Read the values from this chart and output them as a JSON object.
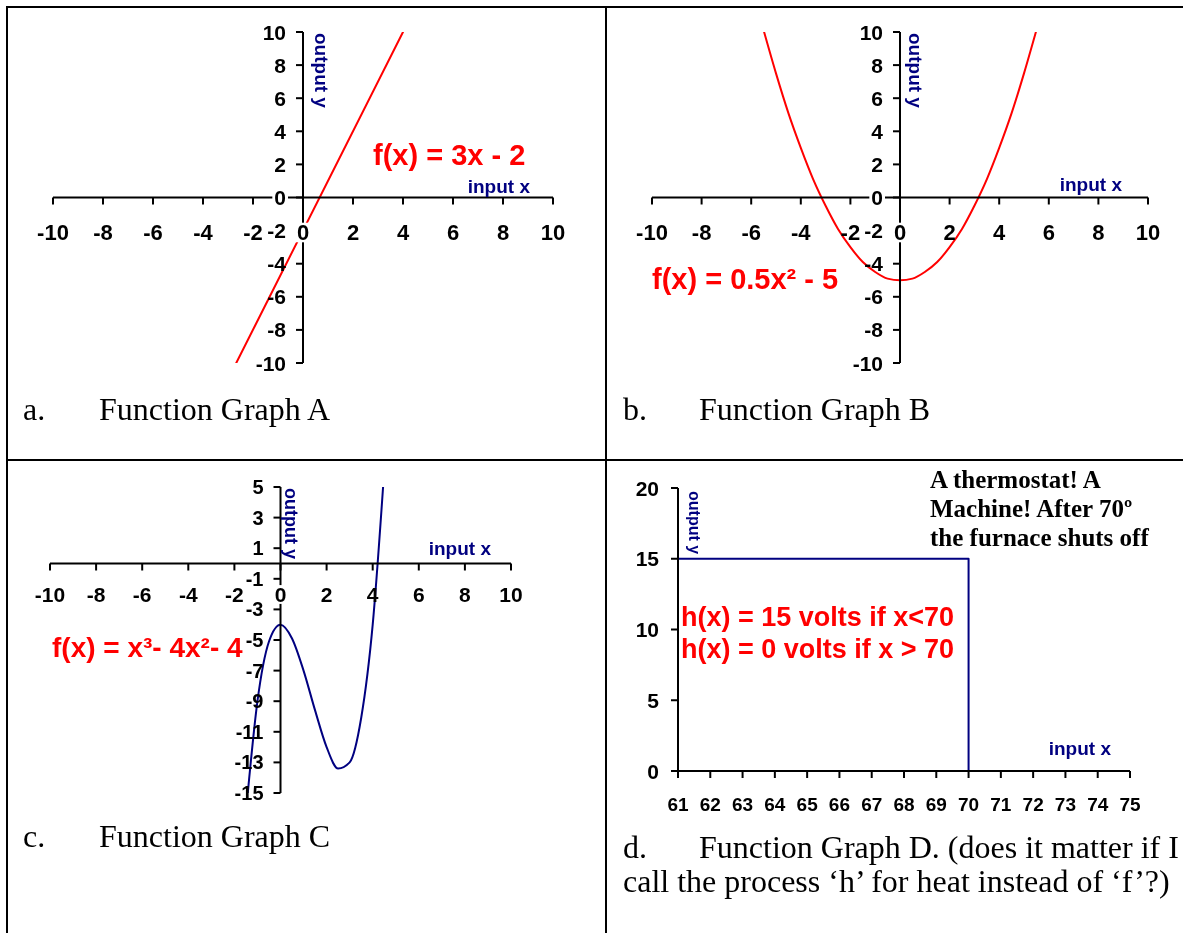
{
  "chart_data": [
    {
      "type": "line",
      "title": "a.\tFunction Graph A",
      "xlabel": "input x",
      "ylabel": "output y",
      "x": [
        -2.67,
        4
      ],
      "series": [
        {
          "color": "#ff0000",
          "values": [
            -10,
            10
          ]
        }
      ],
      "xlim": [
        -10,
        10
      ],
      "xticks": [
        -10,
        -8,
        -6,
        -4,
        -2,
        0,
        2,
        4,
        6,
        8,
        10
      ],
      "ylim": [
        -10,
        10
      ],
      "yticks": [
        -10,
        -8,
        -6,
        -4,
        -2,
        0,
        2,
        4,
        6,
        8,
        10
      ],
      "annotations": [
        "f(x) = 3x - 2"
      ]
    },
    {
      "type": "line",
      "title": "b.\tFunction Graph B",
      "xlabel": "input x",
      "ylabel": "output y",
      "x": [
        -5.48,
        -5,
        -4.5,
        -4,
        -3.5,
        -3,
        -2.5,
        -2,
        -1.5,
        -1,
        -0.5,
        0,
        0.5,
        1,
        1.5,
        2,
        2.5,
        3,
        3.5,
        4,
        4.5,
        5,
        5.48
      ],
      "series": [
        {
          "color": "#ff0000",
          "values": [
            10,
            7.5,
            5.1,
            3,
            1.1,
            -0.5,
            -1.9,
            -3,
            -3.9,
            -4.5,
            -4.9,
            -5,
            -4.9,
            -4.5,
            -3.9,
            -3,
            -1.9,
            -0.5,
            1.1,
            3,
            5.1,
            7.5,
            10
          ]
        }
      ],
      "xlim": [
        -10,
        10
      ],
      "xticks": [
        -10,
        -8,
        -6,
        -4,
        -2,
        0,
        2,
        4,
        6,
        8,
        10
      ],
      "ylim": [
        -10,
        10
      ],
      "yticks": [
        -10,
        -8,
        -6,
        -4,
        -2,
        0,
        2,
        4,
        6,
        8,
        10
      ],
      "annotations": [
        "f(x) = 0.5x² - 5"
      ]
    },
    {
      "type": "line",
      "title": "c.\tFunction Graph C",
      "xlabel": "input x",
      "ylabel": "output y",
      "x": [
        -1.42,
        -1,
        -0.5,
        0,
        0.5,
        1,
        1.5,
        2,
        2.5,
        3,
        3.5,
        4,
        4.45
      ],
      "series": [
        {
          "color": "#000080",
          "values": [
            -15,
            -9,
            -5.1,
            -4,
            -4.9,
            -7,
            -9.6,
            -12,
            -13.4,
            -13,
            -10.1,
            -4,
            5
          ]
        }
      ],
      "xlim": [
        -10,
        10
      ],
      "xticks": [
        -10,
        -8,
        -6,
        -4,
        -2,
        0,
        2,
        4,
        6,
        8,
        10
      ],
      "ylim": [
        -15,
        5
      ],
      "yticks": [
        -15,
        -13,
        -11,
        -9,
        -7,
        -5,
        -3,
        -1,
        1,
        3,
        5
      ],
      "annotations": [
        "f(x) = x³- 4x²- 4"
      ]
    },
    {
      "type": "step",
      "title": "d.\tFunction Graph D. (does it matter if I call the process ‘h’ for heat instead of ‘f’?)",
      "xlabel": "input x",
      "ylabel": "output y",
      "x": [
        61,
        70,
        75
      ],
      "series": [
        {
          "color": "#000080",
          "values": [
            15,
            0,
            0
          ]
        }
      ],
      "xlim": [
        61,
        75
      ],
      "xticks": [
        61,
        62,
        63,
        64,
        65,
        66,
        67,
        68,
        69,
        70,
        71,
        72,
        73,
        74,
        75
      ],
      "ylim": [
        0,
        20
      ],
      "yticks": [
        0,
        5,
        10,
        15,
        20
      ],
      "annotations": [
        "h(x) = 15 volts if x<70",
        "h(x) = 0 volts if x > 70",
        "A thermostat! A Machine! After 70º the furnace shuts off"
      ]
    }
  ]
}
